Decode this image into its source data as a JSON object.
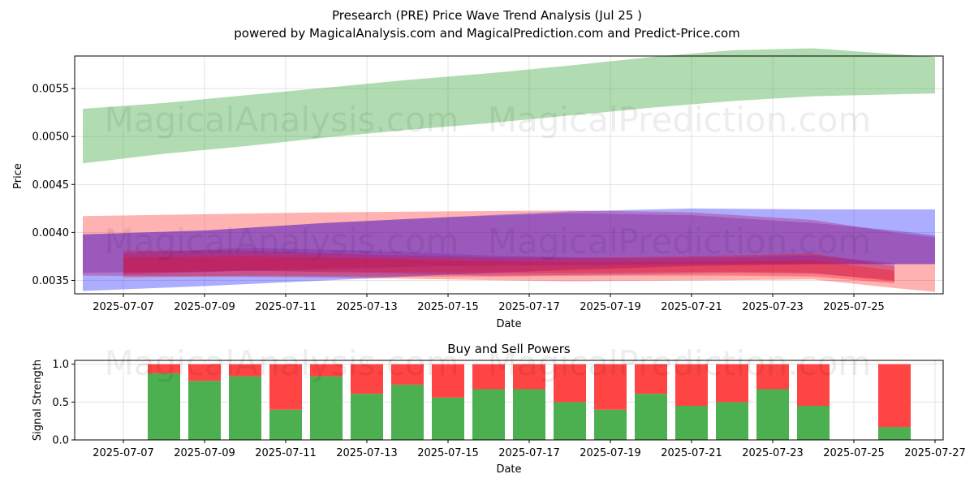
{
  "header": {
    "title": "Presearch (PRE) Price Wave Trend Analysis (Jul 25 )",
    "subtitle": "powered by MagicalAnalysis.com and MagicalPrediction.com and Predict-Price.com"
  },
  "watermarks": {
    "left": "MagicalAnalysis.com",
    "right": "MagicalPrediction.com"
  },
  "colors": {
    "green": "#2ca02c",
    "red": "#ff0000",
    "blue": "#0000ff",
    "purple": "#7b1fa2",
    "buy": "#4caf50",
    "sell": "#ff4444"
  },
  "chart_data": [
    {
      "type": "area",
      "title": "",
      "xlabel": "Date",
      "ylabel": "Price",
      "grid": true,
      "xlim": [
        "2025-07-06",
        "2025-07-27"
      ],
      "ylim": [
        0.00336,
        0.00584
      ],
      "x_ticks": [
        "2025-07-07",
        "2025-07-09",
        "2025-07-11",
        "2025-07-13",
        "2025-07-15",
        "2025-07-17",
        "2025-07-19",
        "2025-07-21",
        "2025-07-23",
        "2025-07-25"
      ],
      "y_ticks": [
        0.0035,
        0.004,
        0.0045,
        0.005,
        0.0055
      ],
      "series": [
        {
          "color": "green",
          "opacity": 0.37,
          "x": [
            "2025-07-06",
            "2025-07-08",
            "2025-07-10",
            "2025-07-12",
            "2025-07-14",
            "2025-07-16",
            "2025-07-18",
            "2025-07-20",
            "2025-07-22",
            "2025-07-24",
            "2025-07-27"
          ],
          "upper": [
            0.00529,
            0.00535,
            0.00543,
            0.00551,
            0.00559,
            0.00566,
            0.00574,
            0.00583,
            0.0059,
            0.00592,
            0.00583
          ],
          "lower": [
            0.00472,
            0.00482,
            0.0049,
            0.00499,
            0.00507,
            0.00514,
            0.00522,
            0.0053,
            0.00537,
            0.00542,
            0.00545
          ]
        },
        {
          "color": "red",
          "opacity": 0.3,
          "x": [
            "2025-07-06",
            "2025-07-09",
            "2025-07-12",
            "2025-07-15",
            "2025-07-18",
            "2025-07-21",
            "2025-07-24",
            "2025-07-26",
            "2025-07-27"
          ],
          "upper": [
            0.00417,
            0.00419,
            0.00421,
            0.00422,
            0.00423,
            0.00421,
            0.00413,
            0.004,
            0.00395
          ],
          "lower": [
            0.00355,
            0.00354,
            0.00353,
            0.00351,
            0.00349,
            0.0035,
            0.00351,
            0.00342,
            0.00338
          ]
        },
        {
          "color": "blue",
          "opacity": 0.32,
          "x": [
            "2025-07-06",
            "2025-07-09",
            "2025-07-12",
            "2025-07-15",
            "2025-07-18",
            "2025-07-21",
            "2025-07-24",
            "2025-07-27"
          ],
          "upper": [
            0.00398,
            0.00402,
            0.0041,
            0.00416,
            0.00422,
            0.00425,
            0.00424,
            0.00424
          ],
          "lower": [
            0.00339,
            0.00344,
            0.0035,
            0.00356,
            0.00361,
            0.00365,
            0.00367,
            0.00367
          ]
        },
        {
          "color": "purple",
          "opacity": 0.35,
          "x": [
            "2025-07-06",
            "2025-07-09",
            "2025-07-12",
            "2025-07-15",
            "2025-07-18",
            "2025-07-21",
            "2025-07-24",
            "2025-07-26",
            "2025-07-27"
          ],
          "upper": [
            0.00398,
            0.00402,
            0.0041,
            0.00416,
            0.0042,
            0.00418,
            0.0041,
            0.00402,
            0.00397
          ],
          "lower": [
            0.00358,
            0.00359,
            0.00362,
            0.00365,
            0.00366,
            0.00367,
            0.00367,
            0.00367,
            0.00367
          ]
        },
        {
          "color": "red",
          "opacity": 0.3,
          "x": [
            "2025-07-07",
            "2025-07-10",
            "2025-07-13",
            "2025-07-16",
            "2025-07-19",
            "2025-07-22",
            "2025-07-24",
            "2025-07-26"
          ],
          "upper": [
            0.00381,
            0.00381,
            0.00377,
            0.00374,
            0.00374,
            0.00376,
            0.00378,
            0.00365
          ],
          "lower": [
            0.00353,
            0.00355,
            0.00354,
            0.00354,
            0.00355,
            0.00355,
            0.00354,
            0.00347
          ]
        },
        {
          "color": "purple",
          "opacity": 0.3,
          "x": [
            "2025-07-07",
            "2025-07-10",
            "2025-07-13",
            "2025-07-16",
            "2025-07-19",
            "2025-07-22",
            "2025-07-24",
            "2025-07-26"
          ],
          "upper": [
            0.00378,
            0.00384,
            0.00381,
            0.00376,
            0.00373,
            0.00374,
            0.00376,
            0.00368
          ],
          "lower": [
            0.00356,
            0.0036,
            0.00358,
            0.00355,
            0.00356,
            0.00358,
            0.00357,
            0.0035
          ]
        },
        {
          "color": "red",
          "opacity": 0.28,
          "x": [
            "2025-07-07",
            "2025-07-10",
            "2025-07-13",
            "2025-07-16",
            "2025-07-19",
            "2025-07-22",
            "2025-07-24",
            "2025-07-26"
          ],
          "upper": [
            0.00374,
            0.00375,
            0.00373,
            0.0037,
            0.00369,
            0.0037,
            0.00371,
            0.0036
          ],
          "lower": [
            0.00358,
            0.0036,
            0.00359,
            0.00358,
            0.00358,
            0.00359,
            0.00358,
            0.00349
          ]
        }
      ]
    },
    {
      "type": "bar",
      "title": "Buy and Sell Powers",
      "xlabel": "Date",
      "ylabel": "Signal Strength",
      "grid": true,
      "xlim": [
        "2025-07-06",
        "2025-07-27"
      ],
      "ylim": [
        0,
        1.05
      ],
      "x_ticks": [
        "2025-07-07",
        "2025-07-09",
        "2025-07-11",
        "2025-07-13",
        "2025-07-15",
        "2025-07-17",
        "2025-07-19",
        "2025-07-21",
        "2025-07-23",
        "2025-07-25",
        "2025-07-27"
      ],
      "y_ticks": [
        0.0,
        0.5,
        1.0
      ],
      "categories": [
        "2025-07-08",
        "2025-07-09",
        "2025-07-10",
        "2025-07-11",
        "2025-07-12",
        "2025-07-13",
        "2025-07-14",
        "2025-07-15",
        "2025-07-16",
        "2025-07-17",
        "2025-07-18",
        "2025-07-19",
        "2025-07-20",
        "2025-07-21",
        "2025-07-22",
        "2025-07-23",
        "2025-07-24",
        "2025-07-26"
      ],
      "series": [
        {
          "color": "buy",
          "values": [
            0.88,
            0.78,
            0.84,
            0.4,
            0.84,
            0.61,
            0.73,
            0.56,
            0.67,
            0.67,
            0.5,
            0.4,
            0.61,
            0.45,
            0.5,
            0.67,
            0.45,
            0.17
          ]
        },
        {
          "color": "sell",
          "values": [
            0.12,
            0.22,
            0.16,
            0.6,
            0.16,
            0.39,
            0.27,
            0.44,
            0.33,
            0.33,
            0.5,
            0.6,
            0.39,
            0.55,
            0.5,
            0.33,
            0.55,
            0.83
          ]
        }
      ]
    }
  ]
}
